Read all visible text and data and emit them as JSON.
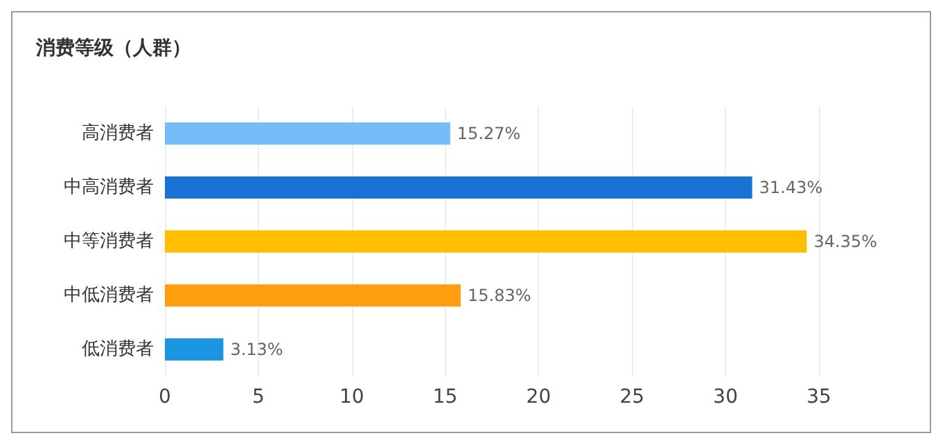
{
  "chart_data": {
    "type": "bar",
    "orientation": "horizontal",
    "title": "消费等级（人群）",
    "categories": [
      "高消费者",
      "中高消费者",
      "中等消费者",
      "中低消费者",
      "低消费者"
    ],
    "values": [
      15.27,
      31.43,
      34.35,
      15.83,
      3.13
    ],
    "colors": [
      "#74bdf8",
      "#1a73d4",
      "#ffbe00",
      "#ff9f0f",
      "#1a96e0"
    ],
    "value_labels": [
      "15.27%",
      "31.43%",
      "34.35%",
      "15.83%",
      "3.13%"
    ],
    "xlim": [
      0,
      35
    ],
    "xticks": [
      0,
      5,
      10,
      15,
      20,
      25,
      30,
      35
    ],
    "grid": "x"
  }
}
